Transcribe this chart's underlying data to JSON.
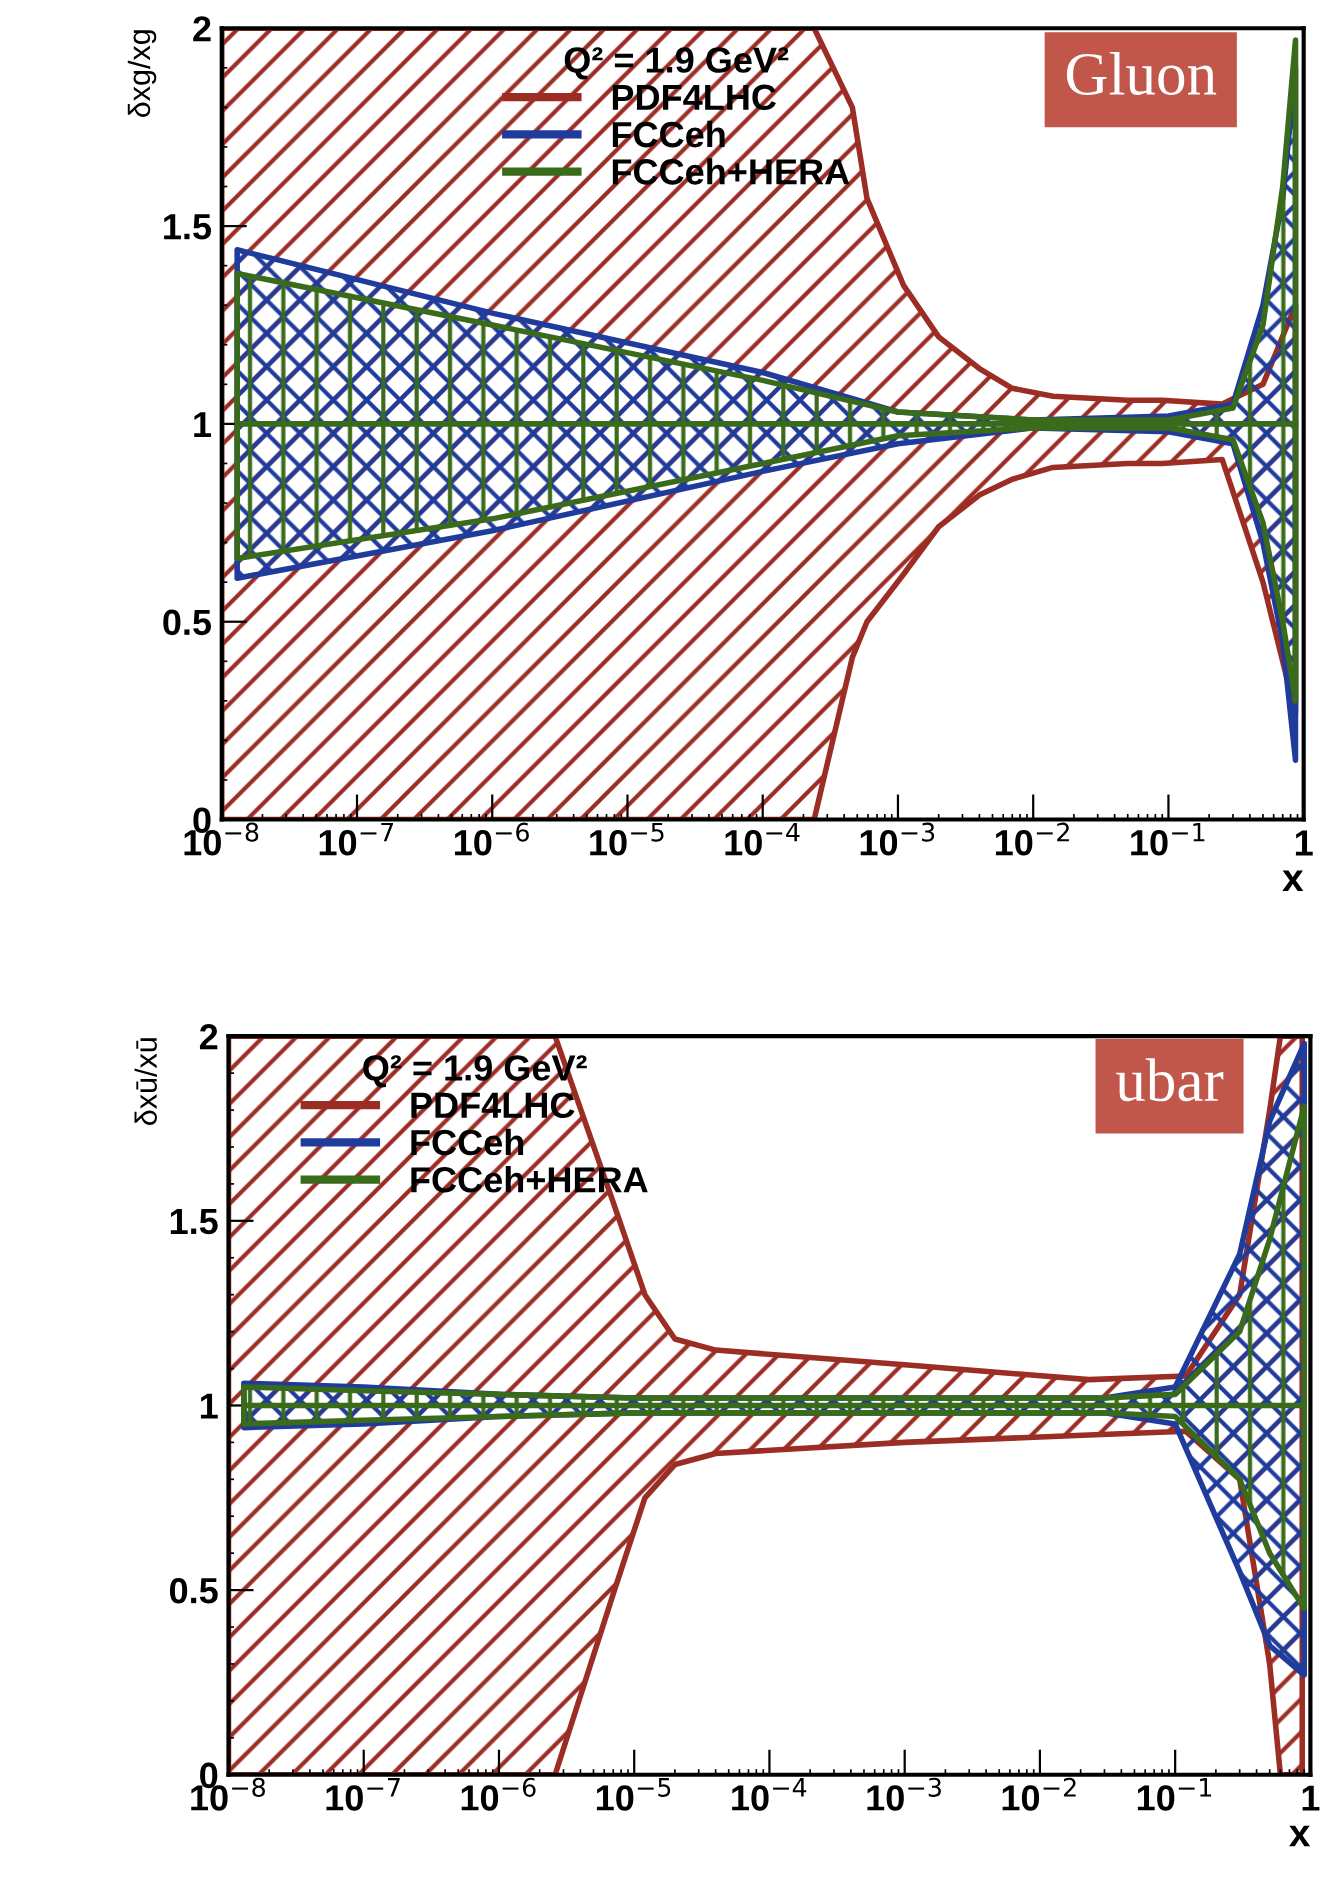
{
  "chart_data": [
    {
      "type": "line",
      "ylabel": "δxg/xg",
      "xlabel": "x",
      "legend_title": "Q² = 1.9 GeV²",
      "annotations": [
        "Gluon"
      ],
      "log": "x",
      "legend": "top",
      "xlim": [
        1e-08,
        1
      ],
      "ylim": [
        0,
        2
      ],
      "xticks": [
        {
          "value": 1e-08,
          "label": "10$^{−8}$"
        },
        {
          "value": 1e-07,
          "label": "10$^{−7}$"
        },
        {
          "value": 1e-06,
          "label": "10$^{−6}$"
        },
        {
          "value": 1e-05,
          "label": "10$^{−5}$"
        },
        {
          "value": 0.0001,
          "label": "10$^{−4}$"
        },
        {
          "value": 0.001,
          "label": "10$^{−3}$"
        },
        {
          "value": 0.01,
          "label": "10$^{−2}$"
        },
        {
          "value": 0.1,
          "label": "10$^{−1}$"
        },
        1
      ],
      "yticks": [
        0,
        0.5,
        1,
        1.5,
        2
      ],
      "series": [
        {
          "name": "PDF4LHC",
          "color": "#9b2d25",
          "x": [
            1e-08,
            1e-06,
            0.0001,
            0.00024,
            0.00046,
            0.00059,
            0.0011,
            0.002,
            0.004,
            0.007,
            0.014,
            0.05,
            0.09,
            0.25,
            0.5,
            0.87
          ],
          "values": [
            null,
            null,
            null,
            null,
            null,
            null,
            null,
            null,
            null,
            null,
            null,
            null,
            null,
            null,
            null,
            null
          ],
          "lower": [
            0,
            0,
            0,
            0,
            0.41,
            0.5,
            0.62,
            0.74,
            0.82,
            0.86,
            0.89,
            0.9,
            0.9,
            0.91,
            0.6,
            0.27
          ],
          "upper": [
            2,
            2,
            2,
            2,
            1.8,
            1.57,
            1.35,
            1.22,
            1.14,
            1.09,
            1.07,
            1.06,
            1.06,
            1.05,
            1.1,
            1.3
          ]
        },
        {
          "name": "FCCeh",
          "color": "#1f3c9c",
          "x": [
            1.3e-08,
            1e-06,
            0.0001,
            0.001,
            0.01,
            0.1,
            0.3,
            0.5,
            0.7,
            0.87
          ],
          "values": [
            null,
            null,
            null,
            null,
            null,
            null,
            null,
            null,
            null,
            null
          ],
          "lower": [
            0.61,
            0.73,
            0.88,
            0.95,
            0.99,
            0.98,
            0.95,
            0.7,
            0.45,
            0.15
          ],
          "upper": [
            1.44,
            1.28,
            1.13,
            1.03,
            1.01,
            1.02,
            1.05,
            1.3,
            1.57,
            1.9
          ]
        },
        {
          "name": "FCCeh+HERA",
          "color": "#3a6b1a",
          "x": [
            1.3e-08,
            1e-06,
            0.0001,
            0.001,
            0.01,
            0.1,
            0.3,
            0.5,
            0.7,
            0.87
          ],
          "values": [
            1,
            1,
            1,
            1,
            1,
            1,
            1,
            1,
            1,
            1
          ],
          "lower": [
            0.66,
            0.76,
            0.9,
            0.97,
            0.99,
            0.99,
            0.96,
            0.75,
            0.5,
            0.3
          ],
          "upper": [
            1.38,
            1.25,
            1.11,
            1.03,
            1.01,
            1.01,
            1.04,
            1.25,
            1.6,
            1.97
          ]
        }
      ]
    },
    {
      "type": "line",
      "ylabel": "δxū/xū",
      "xlabel": "x",
      "legend_title": "Q² = 1.9 GeV²",
      "annotations": [
        "ubar"
      ],
      "log": "x",
      "legend": "top left",
      "xlim": [
        1e-08,
        1
      ],
      "ylim": [
        0,
        2
      ],
      "xticks": [
        {
          "value": 1e-08,
          "label": "10$^{−8}$"
        },
        {
          "value": 1e-07,
          "label": "10$^{−7}$"
        },
        {
          "value": 1e-06,
          "label": "10$^{−6}$"
        },
        {
          "value": 1e-05,
          "label": "10$^{−5}$"
        },
        {
          "value": 0.0001,
          "label": "10$^{−4}$"
        },
        {
          "value": 0.001,
          "label": "10$^{−3}$"
        },
        {
          "value": 0.01,
          "label": "10$^{−2}$"
        },
        {
          "value": 0.1,
          "label": "10$^{−1}$"
        },
        1
      ],
      "yticks": [
        0,
        0.5,
        1,
        1.5,
        2
      ],
      "series": [
        {
          "name": "PDF4LHC",
          "color": "#9b2d25",
          "x": [
            1e-08,
            1e-06,
            2e-06,
            2.6e-06,
            7e-06,
            1.2e-05,
            2e-05,
            4e-05,
            0.001,
            0.023,
            0.12,
            0.3,
            0.5,
            0.6,
            0.87
          ],
          "values": [
            null,
            null,
            null,
            null,
            null,
            null,
            null,
            null,
            null,
            null,
            null,
            null,
            null,
            null,
            null
          ],
          "lower": [
            0,
            0,
            0,
            0,
            0.49,
            0.75,
            0.84,
            0.87,
            0.9,
            0.92,
            0.93,
            0.8,
            0.3,
            0,
            0
          ],
          "upper": [
            2,
            2,
            2,
            2,
            1.55,
            1.3,
            1.18,
            1.15,
            1.11,
            1.07,
            1.08,
            1.3,
            1.8,
            2,
            2
          ]
        },
        {
          "name": "FCCeh",
          "color": "#1f3c9c",
          "x": [
            1.3e-08,
            1e-07,
            1e-06,
            1e-05,
            0.001,
            0.03,
            0.1,
            0.3,
            0.5,
            0.9
          ],
          "values": [
            null,
            null,
            null,
            null,
            null,
            null,
            null,
            null,
            null,
            null
          ],
          "lower": [
            0.94,
            0.95,
            0.97,
            0.98,
            0.98,
            0.98,
            0.95,
            0.55,
            0.35,
            0.27
          ],
          "upper": [
            1.06,
            1.05,
            1.03,
            1.02,
            1.02,
            1.02,
            1.05,
            1.41,
            1.77,
            1.98
          ]
        },
        {
          "name": "FCCeh+HERA",
          "color": "#3a6b1a",
          "x": [
            1.3e-08,
            1e-07,
            1e-06,
            1e-05,
            0.001,
            0.03,
            0.1,
            0.3,
            0.5,
            0.9
          ],
          "values": [
            1,
            1,
            1,
            1,
            1,
            1,
            1,
            1,
            1,
            1
          ],
          "lower": [
            0.95,
            0.96,
            0.97,
            0.98,
            0.98,
            0.98,
            0.97,
            0.8,
            0.6,
            0.45
          ],
          "upper": [
            1.05,
            1.04,
            1.03,
            1.02,
            1.02,
            1.02,
            1.03,
            1.2,
            1.45,
            1.81
          ]
        }
      ]
    }
  ]
}
